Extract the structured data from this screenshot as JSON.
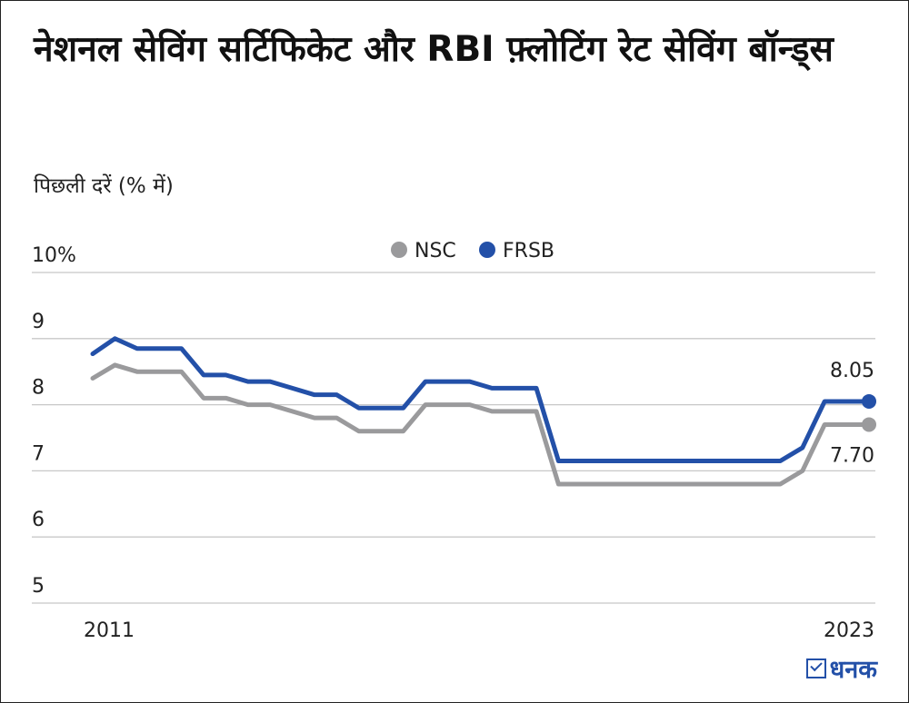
{
  "title": "नेशनल सेविंग सर्टिफिकेट और RBI फ़्लोटिंग रेट सेविंग बॉन्ड्स",
  "brand": "धनक",
  "chart_data": {
    "type": "line",
    "title": "नेशनल सेविंग सर्टिफिकेट और RBI फ़्लोटिंग रेट सेविंग बॉन्ड्स",
    "subtitle": "पिछली दरें (% में)",
    "x_tick_labels": [
      "2011",
      "2023"
    ],
    "y_ticks": [
      5,
      6,
      7,
      8,
      9,
      10
    ],
    "y_tick_labels": [
      "5",
      "6",
      "7",
      "8",
      "9",
      "10%"
    ],
    "ylim": [
      5,
      10
    ],
    "grid": true,
    "legend": "top-center",
    "series": [
      {
        "name": "NSC",
        "color": "#9a9a9c",
        "values": [
          8.4,
          8.6,
          8.5,
          8.5,
          8.5,
          8.1,
          8.1,
          8.0,
          8.0,
          7.9,
          7.8,
          7.8,
          7.6,
          7.6,
          7.6,
          8.0,
          8.0,
          8.0,
          7.9,
          7.9,
          7.9,
          6.8,
          6.8,
          6.8,
          6.8,
          6.8,
          6.8,
          6.8,
          6.8,
          6.8,
          6.8,
          6.8,
          7.0,
          7.7,
          7.7,
          7.7
        ],
        "end_label": "7.70"
      },
      {
        "name": "FRSB",
        "color": "#2350a8",
        "values": [
          8.77,
          9.0,
          8.85,
          8.85,
          8.85,
          8.45,
          8.45,
          8.35,
          8.35,
          8.25,
          8.15,
          8.15,
          7.95,
          7.95,
          7.95,
          8.35,
          8.35,
          8.35,
          8.25,
          8.25,
          8.25,
          7.15,
          7.15,
          7.15,
          7.15,
          7.15,
          7.15,
          7.15,
          7.15,
          7.15,
          7.15,
          7.15,
          7.35,
          8.05,
          8.05,
          8.05
        ],
        "end_label": "8.05"
      }
    ]
  }
}
